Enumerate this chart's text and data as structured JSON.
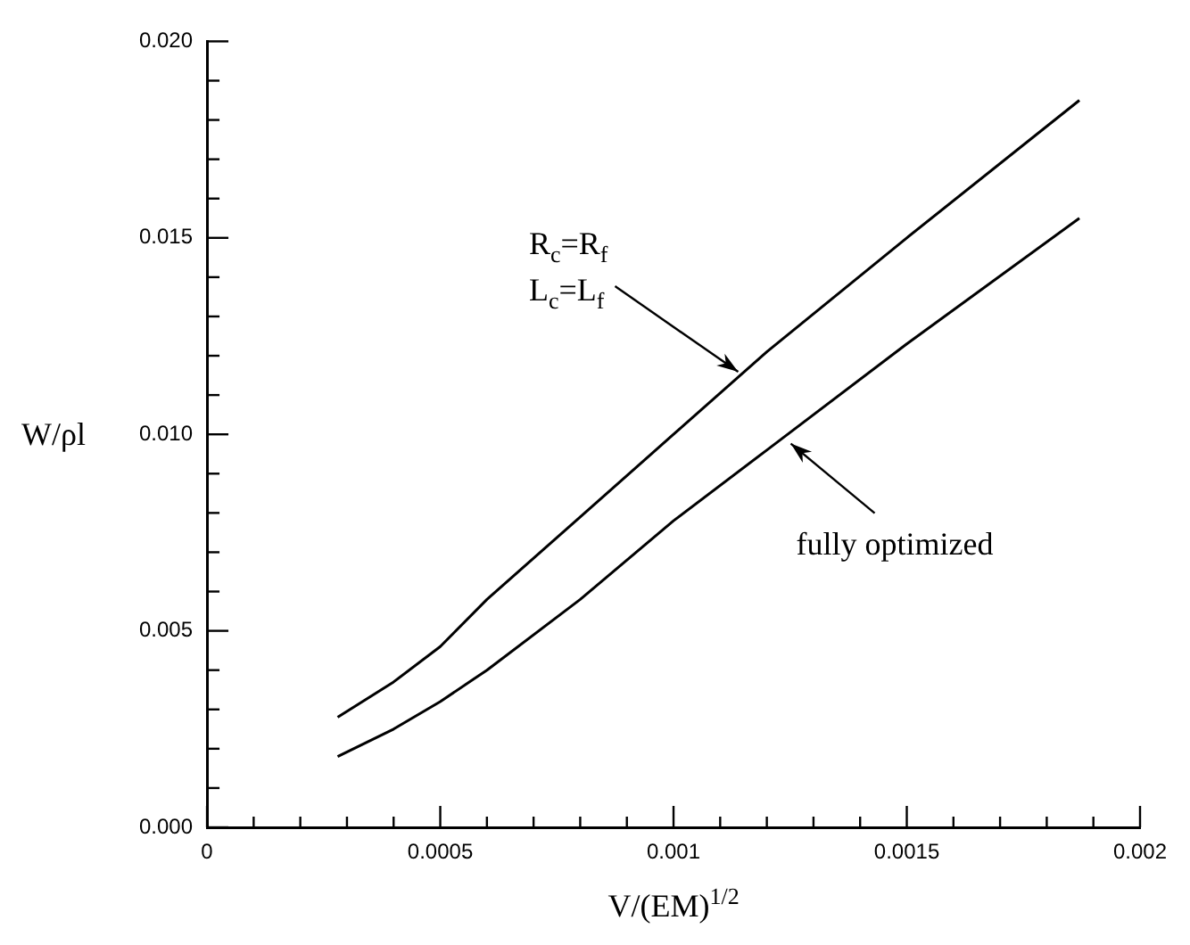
{
  "chart_data": {
    "type": "line",
    "xlabel": "V/(EM)$^{1/2}$",
    "ylabel": "W/ρl",
    "xlim": [
      0,
      0.002
    ],
    "ylim": [
      0,
      0.02
    ],
    "xticks": [
      0,
      {
        "value": 0.0001,
        "label": null
      },
      {
        "value": 0.0002,
        "label": null
      },
      {
        "value": 0.0003,
        "label": null
      },
      {
        "value": 0.0004,
        "label": null
      },
      0.0005,
      {
        "value": 0.0006,
        "label": null
      },
      {
        "value": 0.0007,
        "label": null
      },
      {
        "value": 0.0008,
        "label": null
      },
      {
        "value": 0.0009,
        "label": null
      },
      0.001,
      {
        "value": 0.0011,
        "label": null
      },
      {
        "value": 0.0012,
        "label": null
      },
      {
        "value": 0.0013,
        "label": null
      },
      {
        "value": 0.0014,
        "label": null
      },
      0.0015,
      {
        "value": 0.0016,
        "label": null
      },
      {
        "value": 0.0017,
        "label": null
      },
      {
        "value": 0.0018,
        "label": null
      },
      {
        "value": 0.0019,
        "label": null
      },
      0.002
    ],
    "yticks": [
      {
        "value": 0,
        "label": "0.000"
      },
      {
        "value": 0.001,
        "label": null
      },
      {
        "value": 0.002,
        "label": null
      },
      {
        "value": 0.003,
        "label": null
      },
      {
        "value": 0.004,
        "label": null
      },
      0.005,
      {
        "value": 0.006,
        "label": null
      },
      {
        "value": 0.007,
        "label": null
      },
      {
        "value": 0.008,
        "label": null
      },
      {
        "value": 0.009,
        "label": null
      },
      {
        "value": 0.01,
        "label": "0.010"
      },
      {
        "value": 0.011,
        "label": null
      },
      {
        "value": 0.012,
        "label": null
      },
      {
        "value": 0.013,
        "label": null
      },
      {
        "value": 0.014,
        "label": null
      },
      0.015,
      {
        "value": 0.016,
        "label": null
      },
      {
        "value": 0.017,
        "label": null
      },
      {
        "value": 0.018,
        "label": null
      },
      {
        "value": 0.019,
        "label": null
      },
      {
        "value": 0.02,
        "label": "0.020"
      }
    ],
    "marker": "none",
    "line_style": "solid",
    "series": [
      {
        "color": "#000000",
        "x": [
          0.00028,
          0.0004,
          0.0005,
          0.0006,
          0.0008,
          0.001,
          0.0012,
          0.0015,
          0.00187
        ],
        "values": [
          0.0028,
          0.0037,
          0.0046,
          0.0058,
          0.0079,
          0.01,
          0.0121,
          0.015,
          0.0185
        ]
      },
      {
        "color": "#000000",
        "x": [
          0.00028,
          0.0004,
          0.0005,
          0.0006,
          0.0008,
          0.001,
          0.0012,
          0.0015,
          0.00187
        ],
        "values": [
          0.0018,
          0.0025,
          0.0032,
          0.004,
          0.0058,
          0.0078,
          0.0096,
          0.0123,
          0.0155
        ]
      }
    ],
    "annotations": [
      "R$_{c}$=R$_{f}$",
      {
        "text": "L$_{c}$=L$_{f}$",
        "x": 0.00115,
        "y": 0.0115
      },
      {
        "text": "fully optimized",
        "x": 0.00124,
        "y": 0.0099
      }
    ]
  }
}
